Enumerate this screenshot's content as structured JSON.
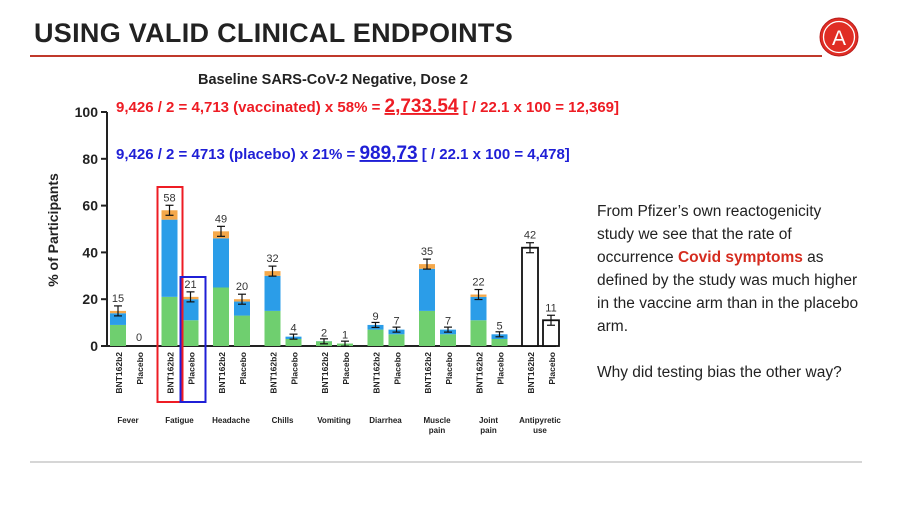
{
  "slide": {
    "title": "USING VALID CLINICAL ENDPOINTS",
    "logo_letter": "A",
    "side_p1_before": "From Pfizer’s own reactogenicity study we see that the rate of occurrence ",
    "side_p1_highlight": "Covid symptoms",
    "side_p1_after": " as defined by the study was much higher in the vaccine arm than in the placebo arm.",
    "side_p2": "Why did testing bias the other way?"
  },
  "annotations": {
    "vacc_pre": "9,426 / 2 = 4,713 (vaccinated) x 58% = ",
    "vacc_big": "2,733.54",
    "vacc_post": " [ / 22.1 x 100 = 12,369]",
    "plac_pre": "9,426 / 2 = 4713 (placebo) x 21% = ",
    "plac_big": "989,73",
    "plac_post": " [ / 22.1 x 100 = 4,478]"
  },
  "colors": {
    "title_rule": "#c0392b",
    "vaccinated_text": "#ee1c24",
    "placebo_text": "#1f1fd6",
    "mild": "#6fcf6f",
    "moderate": "#2b9de8",
    "severe": "#f5a84a",
    "highlight_red_box": "#ee1c24",
    "highlight_blue_box": "#1f1fd6",
    "side_highlight": "#d52b1e"
  },
  "chart_data": {
    "type": "bar",
    "title": "Baseline SARS-CoV-2 Negative, Dose 2",
    "ylabel": "% of Participants",
    "ylim": [
      0,
      100
    ],
    "yticks": [
      0,
      20,
      40,
      60,
      80,
      100
    ],
    "arm_labels": [
      "BNT162b2",
      "Placebo"
    ],
    "categories": [
      {
        "name": "Fever",
        "bnt": {
          "total": 15,
          "mild": 9,
          "moderate": 5,
          "severe": 1
        },
        "placebo": {
          "total": 0,
          "mild": 0,
          "moderate": 0,
          "severe": 0
        }
      },
      {
        "name": "Fatigue",
        "bnt": {
          "total": 58,
          "mild": 21,
          "moderate": 33,
          "severe": 4
        },
        "placebo": {
          "total": 21,
          "mild": 11,
          "moderate": 9,
          "severe": 1
        }
      },
      {
        "name": "Headache",
        "bnt": {
          "total": 49,
          "mild": 25,
          "moderate": 21,
          "severe": 3
        },
        "placebo": {
          "total": 20,
          "mild": 13,
          "moderate": 6,
          "severe": 1
        }
      },
      {
        "name": "Chills",
        "bnt": {
          "total": 32,
          "mild": 15,
          "moderate": 15,
          "severe": 2
        },
        "placebo": {
          "total": 4,
          "mild": 3,
          "moderate": 1,
          "severe": 0
        }
      },
      {
        "name": "Vomiting",
        "bnt": {
          "total": 2,
          "mild": 1,
          "moderate": 1,
          "severe": 0
        },
        "placebo": {
          "total": 1,
          "mild": 1,
          "moderate": 0,
          "severe": 0
        }
      },
      {
        "name": "Diarrhea",
        "bnt": {
          "total": 9,
          "mild": 7,
          "moderate": 2,
          "severe": 0
        },
        "placebo": {
          "total": 7,
          "mild": 5,
          "moderate": 2,
          "severe": 0
        }
      },
      {
        "name": "Muscle pain",
        "bnt": {
          "total": 35,
          "mild": 15,
          "moderate": 18,
          "severe": 2
        },
        "placebo": {
          "total": 7,
          "mild": 5,
          "moderate": 2,
          "severe": 0
        }
      },
      {
        "name": "Joint pain",
        "bnt": {
          "total": 22,
          "mild": 11,
          "moderate": 10,
          "severe": 1
        },
        "placebo": {
          "total": 5,
          "mild": 3,
          "moderate": 2,
          "severe": 0
        }
      },
      {
        "name": "Antipyretic use",
        "bnt": {
          "total": 42,
          "mild": 42,
          "moderate": 0,
          "severe": 0,
          "outline": true
        },
        "placebo": {
          "total": 11,
          "mild": 11,
          "moderate": 0,
          "severe": 0,
          "outline": true
        }
      }
    ],
    "category_lines": [
      [
        "Fever"
      ],
      [
        "Fatigue"
      ],
      [
        "Headache"
      ],
      [
        "Chills"
      ],
      [
        "Vomiting"
      ],
      [
        "Diarrhea"
      ],
      [
        "Muscle",
        "pain"
      ],
      [
        "Joint",
        "pain"
      ],
      [
        "Antipyretic",
        "use"
      ]
    ],
    "highlight": {
      "red_box": "Fatigue BNT162b2",
      "blue_box": "Fatigue Placebo"
    }
  }
}
